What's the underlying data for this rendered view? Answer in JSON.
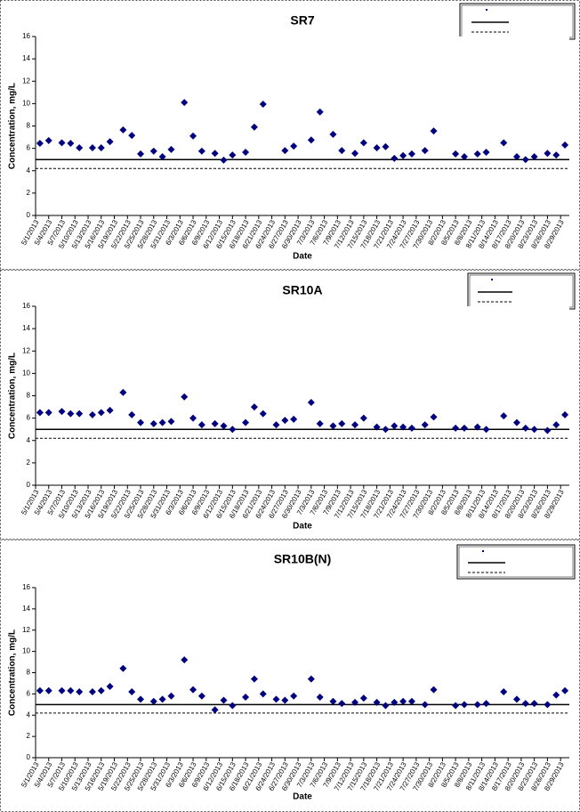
{
  "chart_data": [
    {
      "type": "scatter",
      "title": "SR7",
      "x_label": "Date",
      "y_label": "Concentration, mg/L",
      "color": "#00007f",
      "x": [
        "5/2/2013",
        "5/4/2013",
        "5/7/2013",
        "5/9/2013",
        "5/11/2013",
        "5/14/2013",
        "5/16/2013",
        "5/18/2013",
        "5/21/2013",
        "5/23/2013",
        "5/25/2013",
        "5/28/2013",
        "5/30/2013",
        "6/1/2013",
        "6/4/2013",
        "6/6/2013",
        "6/8/2013",
        "6/11/2013",
        "6/13/2013",
        "6/15/2013",
        "6/18/2013",
        "6/20/2013",
        "6/22/2013",
        "6/27/2013",
        "6/29/2013",
        "7/3/2013",
        "7/5/2013",
        "7/8/2013",
        "7/10/2013",
        "7/13/2013",
        "7/15/2013",
        "7/18/2013",
        "7/20/2013",
        "7/22/2013",
        "7/24/2013",
        "7/26/2013",
        "7/29/2013",
        "7/31/2013",
        "8/5/2013",
        "8/7/2013",
        "8/10/2013",
        "8/12/2013",
        "8/16/2013",
        "8/19/2013",
        "8/21/2013",
        "8/23/2013",
        "8/26/2013",
        "8/28/2013",
        "8/30/2013"
      ],
      "values": [
        6.45,
        6.7,
        6.5,
        6.45,
        6.05,
        6.05,
        6.05,
        6.6,
        7.65,
        7.15,
        5.5,
        5.75,
        5.25,
        5.9,
        10.1,
        7.1,
        5.75,
        5.55,
        4.95,
        5.4,
        5.65,
        7.9,
        9.95,
        5.8,
        6.2,
        6.75,
        9.25,
        7.25,
        5.8,
        5.55,
        6.5,
        6.05,
        6.15,
        5.1,
        5.35,
        5.5,
        5.8,
        7.55,
        5.5,
        5.25,
        5.5,
        5.65,
        6.5,
        5.25,
        5.0,
        5.25,
        5.55,
        5.4,
        6.3
      ],
      "xlim": [
        "5/1/2013",
        "8/31/2013"
      ],
      "xticks": [
        "5/1/2013",
        "5/4/2013",
        "5/7/2013",
        "5/10/2013",
        "5/13/2013",
        "5/16/2013",
        "5/19/2013",
        "5/22/2013",
        "5/25/2013",
        "5/28/2013",
        "5/31/2013",
        "6/3/2013",
        "6/6/2013",
        "6/9/2013",
        "6/12/2013",
        "6/15/2013",
        "6/18/2013",
        "6/21/2013",
        "6/24/2013",
        "6/27/2013",
        "6/30/2013",
        "7/3/2013",
        "7/6/2013",
        "7/9/2013",
        "7/12/2013",
        "7/15/2013",
        "7/18/2013",
        "7/21/2013",
        "7/24/2013",
        "7/27/2013",
        "7/30/2013",
        "8/2/2013",
        "8/5/2013",
        "8/8/2013",
        "8/11/2013",
        "8/14/2013",
        "8/17/2013",
        "8/20/2013",
        "8/23/2013",
        "8/26/2013",
        "8/29/2013"
      ],
      "ylim": [
        0,
        16
      ],
      "yticks": [
        0,
        2,
        4,
        6,
        8,
        10,
        12,
        14,
        16
      ],
      "reference_lines": [
        {
          "value": 5,
          "style": "solid"
        },
        {
          "value": 4.2,
          "style": "dashed"
        }
      ]
    },
    {
      "type": "scatter",
      "title": "SR10A",
      "x_label": "Date",
      "y_label": "Concentration, mg/L",
      "color": "#00007f",
      "x": [
        "5/2/2013",
        "5/4/2013",
        "5/7/2013",
        "5/9/2013",
        "5/11/2013",
        "5/14/2013",
        "5/16/2013",
        "5/18/2013",
        "5/21/2013",
        "5/23/2013",
        "5/25/2013",
        "5/28/2013",
        "5/30/2013",
        "6/1/2013",
        "6/4/2013",
        "6/6/2013",
        "6/8/2013",
        "6/11/2013",
        "6/13/2013",
        "6/15/2013",
        "6/18/2013",
        "6/20/2013",
        "6/22/2013",
        "6/25/2013",
        "6/27/2013",
        "6/29/2013",
        "7/3/2013",
        "7/5/2013",
        "7/8/2013",
        "7/10/2013",
        "7/13/2013",
        "7/15/2013",
        "7/18/2013",
        "7/20/2013",
        "7/22/2013",
        "7/24/2013",
        "7/26/2013",
        "7/29/2013",
        "7/31/2013",
        "8/5/2013",
        "8/7/2013",
        "8/10/2013",
        "8/12/2013",
        "8/16/2013",
        "8/19/2013",
        "8/21/2013",
        "8/23/2013",
        "8/26/2013",
        "8/28/2013",
        "8/30/2013"
      ],
      "values": [
        6.5,
        6.5,
        6.6,
        6.4,
        6.4,
        6.3,
        6.5,
        6.7,
        8.3,
        6.3,
        5.6,
        5.5,
        5.6,
        5.7,
        7.9,
        6.0,
        5.4,
        5.5,
        5.3,
        5.0,
        5.6,
        7.0,
        6.4,
        5.4,
        5.8,
        5.9,
        7.4,
        5.5,
        5.3,
        5.5,
        5.4,
        6.0,
        5.2,
        5.0,
        5.3,
        5.2,
        5.1,
        5.4,
        6.1,
        5.1,
        5.1,
        5.2,
        5.0,
        6.2,
        5.6,
        5.1,
        5.0,
        4.9,
        5.4,
        6.3
      ],
      "xlim": [
        "5/1/2013",
        "8/31/2013"
      ],
      "xticks": [
        "5/1/2013",
        "5/4/2013",
        "5/7/2013",
        "5/10/2013",
        "5/13/2013",
        "5/16/2013",
        "5/19/2013",
        "5/22/2013",
        "5/25/2013",
        "5/28/2013",
        "5/31/2013",
        "6/3/2013",
        "6/6/2013",
        "6/9/2013",
        "6/12/2013",
        "6/15/2013",
        "6/18/2013",
        "6/21/2013",
        "6/24/2013",
        "6/27/2013",
        "6/30/2013",
        "7/3/2013",
        "7/6/2013",
        "7/9/2013",
        "7/12/2013",
        "7/15/2013",
        "7/18/2013",
        "7/21/2013",
        "7/24/2013",
        "7/27/2013",
        "7/30/2013",
        "8/2/2013",
        "8/5/2013",
        "8/8/2013",
        "8/11/2013",
        "8/14/2013",
        "8/17/2013",
        "8/20/2013",
        "8/23/2013",
        "8/26/2013",
        "8/29/2013"
      ],
      "ylim": [
        0,
        16
      ],
      "yticks": [
        0,
        2,
        4,
        6,
        8,
        10,
        12,
        14,
        16
      ],
      "reference_lines": [
        {
          "value": 5,
          "style": "solid"
        },
        {
          "value": 4.2,
          "style": "dashed"
        }
      ]
    },
    {
      "type": "scatter",
      "title": "SR10B(N)",
      "x_label": "Date",
      "y_label": "Concentration, mg/L",
      "color": "#00007f",
      "x": [
        "5/2/2013",
        "5/4/2013",
        "5/7/2013",
        "5/9/2013",
        "5/11/2013",
        "5/14/2013",
        "5/16/2013",
        "5/18/2013",
        "5/21/2013",
        "5/23/2013",
        "5/25/2013",
        "5/28/2013",
        "5/30/2013",
        "6/1/2013",
        "6/4/2013",
        "6/6/2013",
        "6/8/2013",
        "6/11/2013",
        "6/13/2013",
        "6/15/2013",
        "6/18/2013",
        "6/20/2013",
        "6/22/2013",
        "6/25/2013",
        "6/27/2013",
        "6/29/2013",
        "7/3/2013",
        "7/5/2013",
        "7/8/2013",
        "7/10/2013",
        "7/13/2013",
        "7/15/2013",
        "7/18/2013",
        "7/20/2013",
        "7/22/2013",
        "7/24/2013",
        "7/26/2013",
        "7/29/2013",
        "7/31/2013",
        "8/5/2013",
        "8/7/2013",
        "8/10/2013",
        "8/12/2013",
        "8/16/2013",
        "8/19/2013",
        "8/21/2013",
        "8/23/2013",
        "8/26/2013",
        "8/28/2013",
        "8/30/2013"
      ],
      "values": [
        6.3,
        6.3,
        6.3,
        6.3,
        6.2,
        6.2,
        6.3,
        6.7,
        8.4,
        6.2,
        5.5,
        5.3,
        5.5,
        5.8,
        9.2,
        6.4,
        5.8,
        4.5,
        5.4,
        4.9,
        5.7,
        7.4,
        6.0,
        5.5,
        5.4,
        5.8,
        7.4,
        5.7,
        5.3,
        5.1,
        5.2,
        5.6,
        5.2,
        4.9,
        5.2,
        5.3,
        5.3,
        5.0,
        6.4,
        4.9,
        5.0,
        5.0,
        5.1,
        6.2,
        5.5,
        5.1,
        5.1,
        5.0,
        5.9,
        6.3
      ],
      "xlim": [
        "5/1/2013",
        "8/31/2013"
      ],
      "xticks": [
        "5/1/2013",
        "5/4/2013",
        "5/7/2013",
        "5/10/2013",
        "5/13/2013",
        "5/16/2013",
        "5/19/2013",
        "5/22/2013",
        "5/25/2013",
        "5/28/2013",
        "5/31/2013",
        "6/3/2013",
        "6/6/2013",
        "6/9/2013",
        "6/12/2013",
        "6/15/2013",
        "6/18/2013",
        "6/21/2013",
        "6/24/2013",
        "6/27/2013",
        "6/30/2013",
        "7/3/2013",
        "7/6/2013",
        "7/9/2013",
        "7/12/2013",
        "7/15/2013",
        "7/18/2013",
        "7/21/2013",
        "7/24/2013",
        "7/27/2013",
        "7/30/2013",
        "8/2/2013",
        "8/5/2013",
        "8/8/2013",
        "8/11/2013",
        "8/14/2013",
        "8/17/2013",
        "8/20/2013",
        "8/23/2013",
        "8/26/2013",
        "8/29/2013"
      ],
      "ylim": [
        0,
        16
      ],
      "yticks": [
        0,
        2,
        4,
        6,
        8,
        10,
        12,
        14,
        16
      ],
      "reference_lines": [
        {
          "value": 5,
          "style": "solid"
        },
        {
          "value": 4.2,
          "style": "dashed"
        }
      ]
    }
  ]
}
